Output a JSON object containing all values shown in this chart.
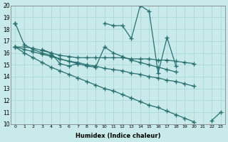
{
  "xlabel": "Humidex (Indice chaleur)",
  "xlim": [
    -0.5,
    23.5
  ],
  "ylim": [
    10,
    20
  ],
  "xticks": [
    0,
    1,
    2,
    3,
    4,
    5,
    6,
    7,
    8,
    9,
    10,
    11,
    12,
    13,
    14,
    15,
    16,
    17,
    18,
    19,
    20,
    21,
    22,
    23
  ],
  "yticks": [
    10,
    11,
    12,
    13,
    14,
    15,
    16,
    17,
    18,
    19,
    20
  ],
  "bg_color": "#c8eaea",
  "grid_color": "#a8d4d4",
  "line_color": "#2a7070",
  "line_width": 0.9,
  "marker": "+",
  "marker_size": 4,
  "series": [
    [
      18.5,
      null,
      null,
      16.3,
      16.0,
      15.1,
      14.9,
      15.1,
      null,
      null,
      18.5,
      18.3,
      18.3,
      17.2,
      20.0,
      19.5,
      14.3,
      17.3,
      14.9,
      null,
      null,
      null,
      10.3,
      11.0
    ],
    [
      18.5,
      16.7,
      16.3,
      16.0,
      15.8,
      15.5,
      15.3,
      15.1,
      14.9,
      14.8,
      16.5,
      16.0,
      15.7,
      15.4,
      15.2,
      15.0,
      14.8,
      14.6,
      14.4,
      null,
      null,
      null,
      null,
      null
    ],
    [
      16.5,
      16.5,
      16.4,
      16.2,
      16.0,
      15.8,
      15.7,
      15.6,
      15.6,
      15.6,
      15.6,
      15.6,
      15.6,
      15.5,
      15.5,
      15.5,
      15.4,
      15.4,
      15.3,
      15.2,
      15.1,
      null,
      null,
      null
    ],
    [
      16.5,
      16.3,
      16.1,
      15.9,
      15.7,
      15.5,
      15.3,
      15.2,
      15.0,
      14.9,
      14.7,
      14.6,
      14.5,
      14.3,
      14.2,
      14.0,
      13.9,
      13.7,
      13.6,
      13.4,
      13.2,
      null,
      null,
      null
    ],
    [
      16.5,
      16.0,
      15.6,
      15.2,
      14.8,
      14.5,
      14.2,
      13.9,
      13.6,
      13.3,
      13.0,
      12.8,
      12.5,
      12.2,
      11.9,
      11.6,
      11.4,
      11.1,
      10.8,
      10.5,
      10.2,
      null,
      null,
      null
    ]
  ]
}
